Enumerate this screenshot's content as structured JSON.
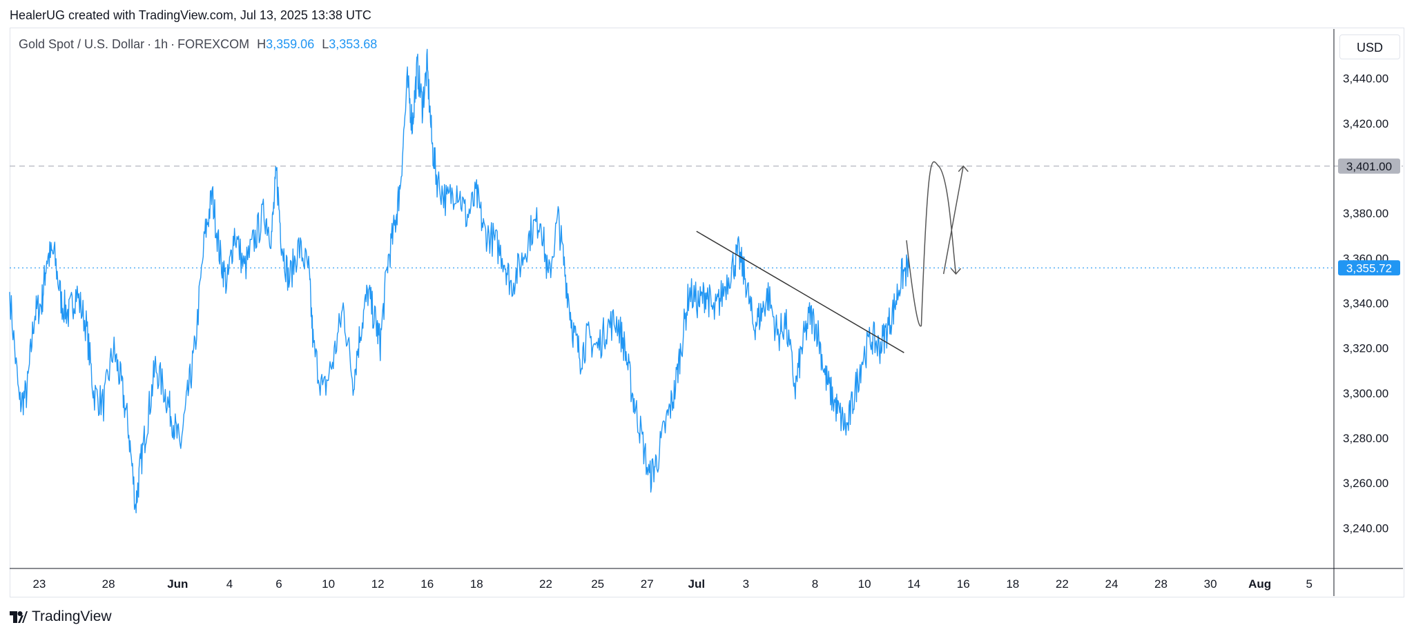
{
  "header": {
    "text": "HealerUG created with TradingView.com, Jul 13, 2025 13:38 UTC"
  },
  "legend": {
    "symbol": "Gold Spot / U.S. Dollar",
    "interval": "1h",
    "exchange": "FOREXCOM",
    "high_label": "H",
    "high_value": "3,359.06",
    "low_label": "L",
    "low_value": "3,353.68"
  },
  "currency": "USD",
  "footer": {
    "brand": "TradingView",
    "logo_icon": "tradingview-logo-icon"
  },
  "colors": {
    "price": "#2196f3",
    "axis": "#131722",
    "grid": "#e0e3eb",
    "drawing": "#555555",
    "badge_gray": "#b2b5be"
  },
  "chart_data": {
    "type": "line",
    "ylim": [
      3222,
      3462
    ],
    "xlim": [
      -0.6,
      26.2
    ],
    "y_ticks": [
      "3,440.00",
      "3,420.00",
      "3,380.00",
      "3,360.00",
      "3,340.00",
      "3,320.00",
      "3,300.00",
      "3,280.00",
      "3,260.00",
      "3,240.00"
    ],
    "y_tick_values": [
      3440,
      3420,
      3380,
      3360,
      3340,
      3320,
      3300,
      3280,
      3260,
      3240
    ],
    "x_ticks": [
      {
        "label": "23",
        "x": 0,
        "bold": false
      },
      {
        "label": "28",
        "x": 1.4,
        "bold": false
      },
      {
        "label": "Jun",
        "x": 2.8,
        "bold": true
      },
      {
        "label": "4",
        "x": 3.85,
        "bold": false
      },
      {
        "label": "6",
        "x": 4.85,
        "bold": false
      },
      {
        "label": "10",
        "x": 5.85,
        "bold": false
      },
      {
        "label": "12",
        "x": 6.85,
        "bold": false
      },
      {
        "label": "16",
        "x": 7.85,
        "bold": false
      },
      {
        "label": "18",
        "x": 8.85,
        "bold": false
      },
      {
        "label": "22",
        "x": 10.25,
        "bold": false
      },
      {
        "label": "25",
        "x": 11.3,
        "bold": false
      },
      {
        "label": "27",
        "x": 12.3,
        "bold": false
      },
      {
        "label": "Jul",
        "x": 13.3,
        "bold": true
      },
      {
        "label": "3",
        "x": 14.3,
        "bold": false
      },
      {
        "label": "8",
        "x": 15.7,
        "bold": false
      },
      {
        "label": "10",
        "x": 16.7,
        "bold": false
      },
      {
        "label": "14",
        "x": 17.7,
        "bold": false
      },
      {
        "label": "16",
        "x": 18.7,
        "bold": false
      },
      {
        "label": "18",
        "x": 19.7,
        "bold": false
      },
      {
        "label": "22",
        "x": 20.7,
        "bold": false
      },
      {
        "label": "24",
        "x": 21.7,
        "bold": false
      },
      {
        "label": "28",
        "x": 22.7,
        "bold": false
      },
      {
        "label": "30",
        "x": 23.7,
        "bold": false
      },
      {
        "label": "Aug",
        "x": 24.7,
        "bold": true
      },
      {
        "label": "5",
        "x": 25.7,
        "bold": false
      }
    ],
    "series": [
      {
        "values": [
          [
            -0.6,
            3345
          ],
          [
            -0.4,
            3295
          ],
          [
            -0.25,
            3300
          ],
          [
            -0.1,
            3335
          ],
          [
            0.05,
            3340
          ],
          [
            0.15,
            3360
          ],
          [
            0.3,
            3362
          ],
          [
            0.45,
            3340
          ],
          [
            0.6,
            3335
          ],
          [
            0.75,
            3345
          ],
          [
            0.95,
            3330
          ],
          [
            1.1,
            3300
          ],
          [
            1.3,
            3295
          ],
          [
            1.5,
            3320
          ],
          [
            1.65,
            3305
          ],
          [
            1.8,
            3285
          ],
          [
            1.95,
            3250
          ],
          [
            2.05,
            3268
          ],
          [
            2.2,
            3290
          ],
          [
            2.35,
            3312
          ],
          [
            2.55,
            3300
          ],
          [
            2.7,
            3288
          ],
          [
            2.85,
            3276
          ],
          [
            3.0,
            3298
          ],
          [
            3.15,
            3320
          ],
          [
            3.35,
            3370
          ],
          [
            3.5,
            3388
          ],
          [
            3.65,
            3362
          ],
          [
            3.8,
            3348
          ],
          [
            3.95,
            3372
          ],
          [
            4.15,
            3355
          ],
          [
            4.35,
            3368
          ],
          [
            4.55,
            3380
          ],
          [
            4.7,
            3370
          ],
          [
            4.8,
            3398
          ],
          [
            4.9,
            3368
          ],
          [
            5.05,
            3350
          ],
          [
            5.25,
            3365
          ],
          [
            5.45,
            3355
          ],
          [
            5.55,
            3320
          ],
          [
            5.75,
            3300
          ],
          [
            5.95,
            3315
          ],
          [
            6.15,
            3338
          ],
          [
            6.35,
            3305
          ],
          [
            6.5,
            3328
          ],
          [
            6.65,
            3345
          ],
          [
            6.8,
            3332
          ],
          [
            6.9,
            3322
          ],
          [
            7.05,
            3358
          ],
          [
            7.2,
            3375
          ],
          [
            7.3,
            3392
          ],
          [
            7.45,
            3438
          ],
          [
            7.55,
            3420
          ],
          [
            7.65,
            3445
          ],
          [
            7.75,
            3428
          ],
          [
            7.85,
            3445
          ],
          [
            7.95,
            3410
          ],
          [
            8.05,
            3395
          ],
          [
            8.25,
            3385
          ],
          [
            8.45,
            3392
          ],
          [
            8.65,
            3378
          ],
          [
            8.85,
            3388
          ],
          [
            9.0,
            3372
          ],
          [
            9.2,
            3368
          ],
          [
            9.4,
            3360
          ],
          [
            9.55,
            3348
          ],
          [
            9.75,
            3358
          ],
          [
            9.95,
            3372
          ],
          [
            10.15,
            3378
          ],
          [
            10.3,
            3350
          ],
          [
            10.5,
            3378
          ],
          [
            10.65,
            3352
          ],
          [
            10.8,
            3328
          ],
          [
            10.95,
            3316
          ],
          [
            11.1,
            3325
          ],
          [
            11.3,
            3320
          ],
          [
            11.5,
            3330
          ],
          [
            11.7,
            3332
          ],
          [
            11.85,
            3320
          ],
          [
            12.0,
            3300
          ],
          [
            12.15,
            3285
          ],
          [
            12.35,
            3262
          ],
          [
            12.5,
            3270
          ],
          [
            12.7,
            3288
          ],
          [
            12.85,
            3300
          ],
          [
            13.0,
            3322
          ],
          [
            13.15,
            3345
          ],
          [
            13.35,
            3340
          ],
          [
            13.5,
            3345
          ],
          [
            13.65,
            3335
          ],
          [
            13.8,
            3343
          ],
          [
            14.0,
            3355
          ],
          [
            14.15,
            3362
          ],
          [
            14.3,
            3350
          ],
          [
            14.45,
            3330
          ],
          [
            14.6,
            3335
          ],
          [
            14.75,
            3344
          ],
          [
            14.95,
            3325
          ],
          [
            15.1,
            3332
          ],
          [
            15.3,
            3302
          ],
          [
            15.45,
            3322
          ],
          [
            15.6,
            3335
          ],
          [
            15.75,
            3328
          ],
          [
            15.9,
            3308
          ],
          [
            16.05,
            3298
          ],
          [
            16.2,
            3290
          ],
          [
            16.35,
            3284
          ],
          [
            16.5,
            3300
          ],
          [
            16.65,
            3315
          ],
          [
            16.85,
            3325
          ],
          [
            17.0,
            3320
          ],
          [
            17.15,
            3328
          ],
          [
            17.3,
            3338
          ],
          [
            17.45,
            3352
          ],
          [
            17.6,
            3356
          ]
        ]
      }
    ],
    "trendline": {
      "x1": 13.3,
      "y1": 3372,
      "x2": 17.5,
      "y2": 3318
    },
    "current_price": {
      "value": 3355.72,
      "label": "3,355.72"
    },
    "resistance": {
      "value": 3401,
      "label": "3,401.00"
    },
    "projection_path": [
      [
        17.55,
        3368
      ],
      [
        17.85,
        3330
      ],
      [
        18.2,
        3401
      ],
      [
        18.55,
        3353
      ]
    ],
    "projection_arrow_up": [
      18.7,
      3401
    ],
    "projection_arrow_down": [
      18.55,
      3353
    ]
  }
}
